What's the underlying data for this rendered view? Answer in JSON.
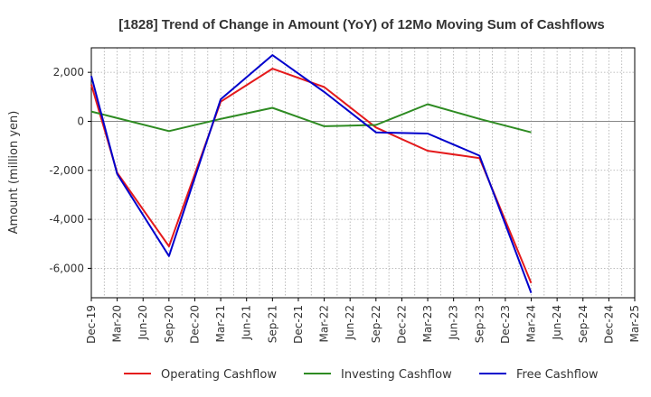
{
  "chart_data": {
    "type": "line",
    "title": "[1828]  Trend of Change in Amount (YoY) of 12Mo Moving Sum of Cashflows",
    "xlabel": "",
    "ylabel": "Amount (million yen)",
    "ylim": [
      -7200,
      3000
    ],
    "yticks": [
      2000,
      0,
      -2000,
      -4000,
      -6000
    ],
    "ytick_labels": [
      "2,000",
      "0",
      "-2,000",
      "-4,000",
      "-6,000"
    ],
    "categories": [
      "Dec-19",
      "Mar-20",
      "Jun-20",
      "Sep-20",
      "Dec-20",
      "Mar-21",
      "Jun-21",
      "Sep-21",
      "Dec-21",
      "Mar-22",
      "Jun-22",
      "Sep-22",
      "Dec-22",
      "Mar-23",
      "Jun-23",
      "Sep-23",
      "Dec-23",
      "Mar-24",
      "Jun-24",
      "Sep-24",
      "Dec-24",
      "Mar-25"
    ],
    "series": [
      {
        "name": "Operating Cashflow",
        "color": "#e41a1c",
        "values": [
          1500,
          -2100,
          null,
          -5100,
          null,
          800,
          null,
          2150,
          null,
          1400,
          null,
          -250,
          null,
          -1200,
          null,
          -1500,
          null,
          -6600,
          null,
          null,
          null,
          null
        ]
      },
      {
        "name": "Investing Cashflow",
        "color": "#2e8b22",
        "values": [
          400,
          null,
          null,
          -400,
          null,
          100,
          null,
          550,
          null,
          -200,
          null,
          -150,
          null,
          700,
          null,
          100,
          null,
          -450,
          null,
          null,
          null,
          null
        ]
      },
      {
        "name": "Free Cashflow",
        "color": "#0000cc",
        "values": [
          1850,
          -2150,
          null,
          -5500,
          null,
          900,
          null,
          2700,
          null,
          1200,
          null,
          -450,
          null,
          -500,
          null,
          -1400,
          null,
          -7000,
          null,
          null,
          null,
          null
        ]
      }
    ],
    "grid": true,
    "legend_position": "bottom"
  }
}
